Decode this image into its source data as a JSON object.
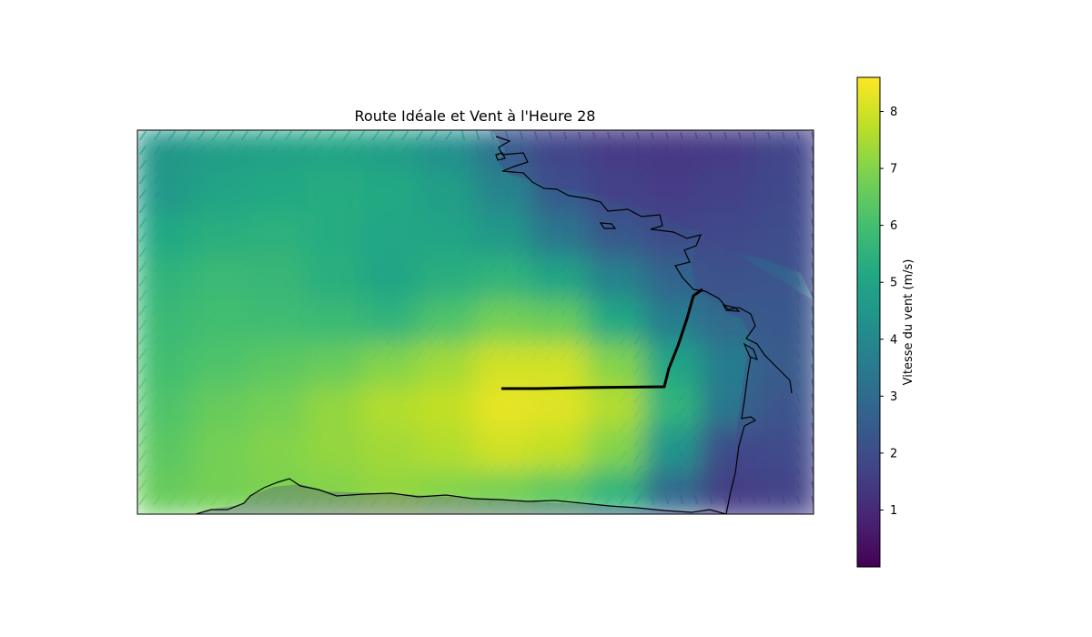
{
  "chart_data": {
    "type": "heatmap",
    "title": "Route Idéale et Vent à l'Heure 28",
    "colorbar": {
      "label": "Vitesse du vent (m/s)",
      "ticks": [
        "1",
        "2",
        "3",
        "4",
        "5",
        "6",
        "7",
        "8"
      ],
      "range": [
        0,
        8.6
      ],
      "colormap": "viridis"
    },
    "field": {
      "description_values": "wind speed (m/s) on a lon/lat grid",
      "speed_grid_rows": [
        [
          4.5,
          4.8,
          4.9,
          5.0,
          4.8,
          4.3,
          3.2,
          2.0,
          1.5,
          1.4,
          1.5,
          2.0
        ],
        [
          4.6,
          5.0,
          5.2,
          5.3,
          5.2,
          4.8,
          3.9,
          2.5,
          1.8,
          1.6,
          1.8,
          2.2
        ],
        [
          5.2,
          5.4,
          5.5,
          5.3,
          5.1,
          5.0,
          4.6,
          3.4,
          2.4,
          2.0,
          2.2,
          2.4
        ],
        [
          5.6,
          5.8,
          5.7,
          5.4,
          5.0,
          5.4,
          5.6,
          5.0,
          3.8,
          2.8,
          2.5,
          2.6
        ],
        [
          5.8,
          6.0,
          5.9,
          5.8,
          5.6,
          6.2,
          6.8,
          6.6,
          5.2,
          3.6,
          3.0,
          2.8
        ],
        [
          6.0,
          6.2,
          6.4,
          6.6,
          7.0,
          7.4,
          8.0,
          8.0,
          7.0,
          5.0,
          3.6,
          3.0
        ],
        [
          6.2,
          6.6,
          6.8,
          7.2,
          7.6,
          7.8,
          8.3,
          8.2,
          7.6,
          5.6,
          3.4,
          2.6
        ],
        [
          6.4,
          6.8,
          7.0,
          7.2,
          7.4,
          7.6,
          8.0,
          7.8,
          7.0,
          4.4,
          2.0,
          2.2
        ],
        [
          6.6,
          6.8,
          6.9,
          7.0,
          7.2,
          7.0,
          6.8,
          6.4,
          5.6,
          3.0,
          1.6,
          1.8
        ]
      ]
    },
    "route": {
      "label": "Route Idéale"
    }
  }
}
